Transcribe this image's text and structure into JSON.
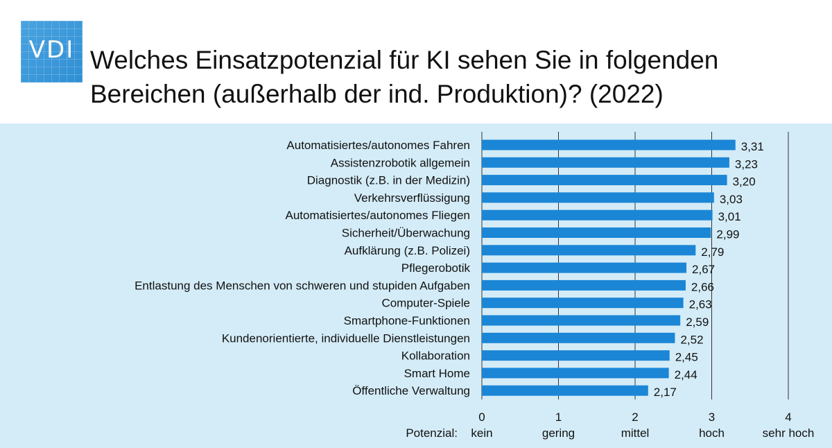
{
  "logo": {
    "text": "VDI"
  },
  "title_lines": [
    "Welches Einsatzpotenzial für KI sehen Sie in folgenden",
    "Bereichen (außerhalb der ind. Produktion)? (2022)"
  ],
  "colors": {
    "bar": "#1b86d6",
    "background": "#d4ecf7",
    "logo": "#3a9ad9",
    "grid": "#333333"
  },
  "chart_data": {
    "type": "bar",
    "orientation": "horizontal",
    "title": "Welches Einsatzpotenzial für KI sehen Sie in folgenden Bereichen (außerhalb der ind. Produktion)? (2022)",
    "categories": [
      "Automatisiertes/autonomes Fahren",
      "Assistenzrobotik allgemein",
      "Diagnostik (z.B. in der Medizin)",
      "Verkehrsverflüssigung",
      "Automatisiertes/autonomes Fliegen",
      "Sicherheit/Überwachung",
      "Aufklärung (z.B. Polizei)",
      "Pflegerobotik",
      "Entlastung des Menschen von schweren und stupiden Aufgaben",
      "Computer-Spiele",
      "Smartphone-Funktionen",
      "Kundenorientierte, individuelle Dienstleistungen",
      "Kollaboration",
      "Smart Home",
      "Öffentliche Verwaltung"
    ],
    "values": [
      3.31,
      3.23,
      3.2,
      3.03,
      3.01,
      2.99,
      2.79,
      2.67,
      2.66,
      2.63,
      2.59,
      2.52,
      2.45,
      2.44,
      2.17
    ],
    "value_labels": [
      "3,31",
      "3,23",
      "3,20",
      "3,03",
      "3,01",
      "2,99",
      "2,79",
      "2,67",
      "2,66",
      "2,63",
      "2,59",
      "2,52",
      "2,45",
      "2,44",
      "2,17"
    ],
    "xlim": [
      0,
      4
    ],
    "xticks": [
      0,
      1,
      2,
      3,
      4
    ],
    "xtick_labels": [
      "0",
      "1",
      "2",
      "3",
      "4"
    ],
    "xtick_sublabels": [
      "kein",
      "gering",
      "mittel",
      "hoch",
      "sehr hoch"
    ],
    "xlabel": "Potenzial:",
    "grid": true
  }
}
